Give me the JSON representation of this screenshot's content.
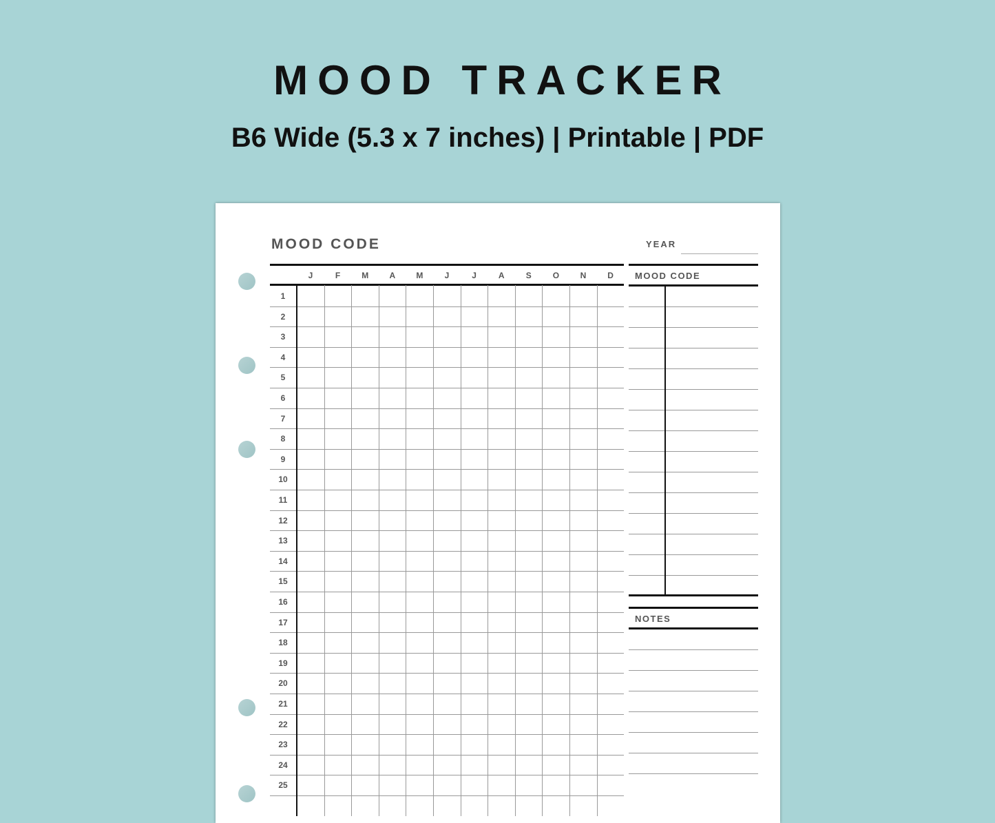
{
  "header": {
    "title": "MOOD TRACKER",
    "subtitle": "B6 Wide (5.3 x 7 inches) | Printable | PDF"
  },
  "sheet": {
    "heading": "MOOD CODE",
    "year_label": "YEAR",
    "months": [
      "J",
      "F",
      "M",
      "A",
      "M",
      "J",
      "J",
      "A",
      "S",
      "O",
      "N",
      "D"
    ],
    "days": [
      "1",
      "2",
      "3",
      "4",
      "5",
      "6",
      "7",
      "8",
      "9",
      "10",
      "11",
      "12",
      "13",
      "14",
      "15",
      "16",
      "17",
      "18",
      "19",
      "20",
      "21",
      "22",
      "23",
      "24",
      "25"
    ],
    "mood_code_label": "MOOD CODE",
    "notes_label": "NOTES"
  },
  "colors": {
    "background": "#a8d4d6",
    "paper": "#ffffff",
    "text": "#555555"
  }
}
